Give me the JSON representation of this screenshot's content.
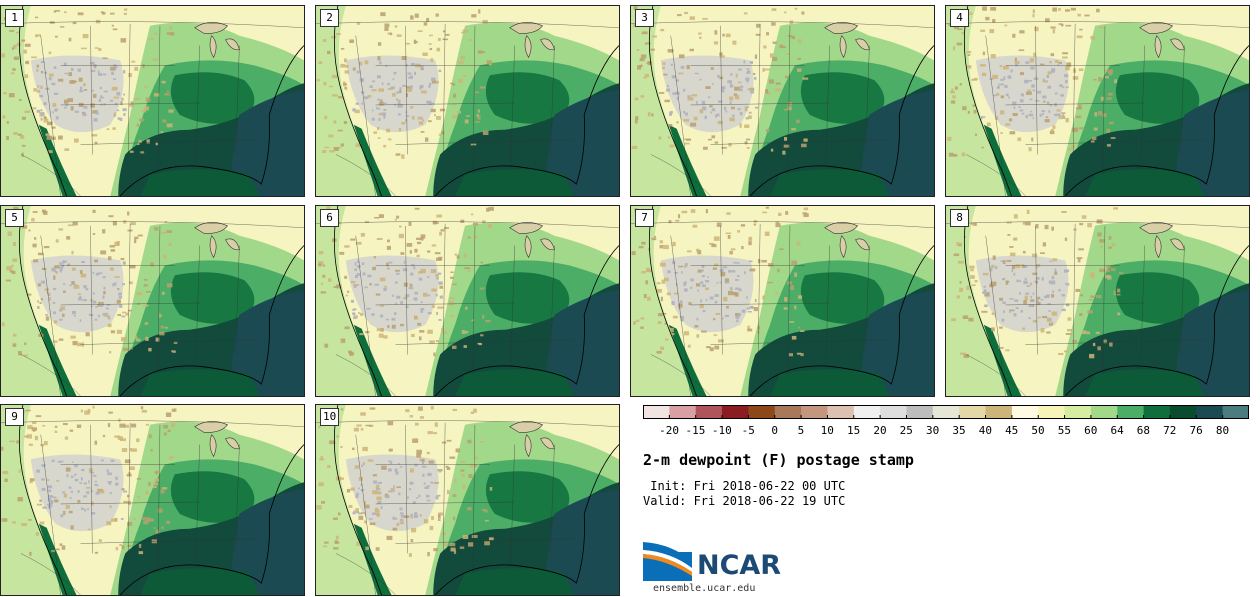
{
  "panels": [
    {
      "label": "1"
    },
    {
      "label": "2"
    },
    {
      "label": "3"
    },
    {
      "label": "4"
    },
    {
      "label": "5"
    },
    {
      "label": "6"
    },
    {
      "label": "7"
    },
    {
      "label": "8"
    },
    {
      "label": "9"
    },
    {
      "label": "10"
    }
  ],
  "colorbar": {
    "ticks": [
      "-20",
      "-15",
      "-10",
      "-5",
      "0",
      "5",
      "10",
      "15",
      "20",
      "25",
      "30",
      "35",
      "40",
      "45",
      "50",
      "55",
      "60",
      "64",
      "68",
      "72",
      "76",
      "80"
    ],
    "colors": [
      "#f3e4e4",
      "#d9a0a4",
      "#b0545c",
      "#8a1c22",
      "#8c4818",
      "#a8785a",
      "#c4967e",
      "#dcc0b0",
      "#f0f0f0",
      "#dedede",
      "#bdbdbd",
      "#e6e6d6",
      "#e4d8a8",
      "#cdb478",
      "#fffbe2",
      "#f6f4b8",
      "#d6eca0",
      "#a2d88a",
      "#4cae66",
      "#0e6e3c",
      "#094d2e",
      "#1b4a52",
      "#4a7c80"
    ]
  },
  "title": "2-m dewpoint (F) postage stamp",
  "init": " Init: Fri 2018-06-22 00 UTC",
  "valid": "Valid: Fri 2018-06-22 19 UTC",
  "logo": {
    "text": "NCAR",
    "url": "ensemble.ucar.edu"
  }
}
